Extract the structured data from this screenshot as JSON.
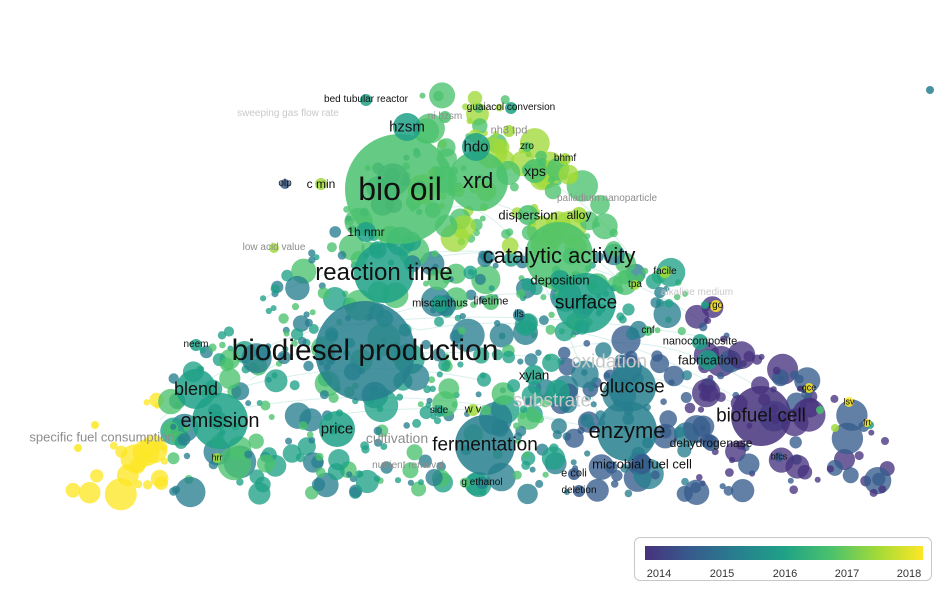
{
  "colormap": [
    "#46327e",
    "#365c8d",
    "#277f8e",
    "#1fa187",
    "#4ac16d",
    "#a0da39",
    "#fde725"
  ],
  "legend": {
    "ticks": [
      "2014",
      "2015",
      "2016",
      "2017",
      "2018"
    ]
  },
  "terms": [
    {
      "id": "biodiesel_production",
      "label": "biodiesel production"
    },
    {
      "id": "bio_oil",
      "label": "bio oil"
    },
    {
      "id": "reaction_time",
      "label": "reaction time"
    },
    {
      "id": "catalytic_activity",
      "label": "catalytic activity"
    },
    {
      "id": "xrd",
      "label": "xrd"
    },
    {
      "id": "enzyme",
      "label": "enzyme"
    },
    {
      "id": "biofuel_cell",
      "label": "biofuel cell"
    },
    {
      "id": "emission",
      "label": "emission"
    },
    {
      "id": "fermentation",
      "label": "fermentation"
    },
    {
      "id": "glucose",
      "label": "glucose"
    },
    {
      "id": "surface",
      "label": "surface"
    },
    {
      "id": "blend",
      "label": "blend"
    },
    {
      "id": "hzsm",
      "label": "hzsm"
    },
    {
      "id": "hdo",
      "label": "hdo"
    },
    {
      "id": "price",
      "label": "price"
    },
    {
      "id": "specific_fuel_consumption",
      "label": "specific fuel consumption"
    },
    {
      "id": "xps",
      "label": "xps"
    },
    {
      "id": "dispersion",
      "label": "dispersion"
    },
    {
      "id": "alloy",
      "label": "alloy"
    },
    {
      "id": "1h_nmr",
      "label": "1h nmr"
    },
    {
      "id": "deposition",
      "label": "deposition"
    },
    {
      "id": "microbial_fuel_cell",
      "label": "microbial fuel cell"
    },
    {
      "id": "dehydrogenase",
      "label": "dehydrogenase"
    },
    {
      "id": "fabrication",
      "label": "fabrication"
    },
    {
      "id": "nanocomposite",
      "label": "nanocomposite"
    },
    {
      "id": "xylan",
      "label": "xylan"
    },
    {
      "id": "cultivation",
      "label": "cultivation"
    },
    {
      "id": "substrate",
      "label": "substrate"
    },
    {
      "id": "oxidation",
      "label": "oxidation"
    },
    {
      "id": "bed_tubular_reactor",
      "label": "bed tubular reactor"
    },
    {
      "id": "guaiacol_conversion",
      "label": "guaiacol conversion"
    },
    {
      "id": "sweeping_gas_flow_rate",
      "label": "sweeping gas flow rate"
    },
    {
      "id": "ni_hzsm",
      "label": "ni hzsm"
    },
    {
      "id": "nh3_tpd",
      "label": "nh3 tpd"
    },
    {
      "id": "zro",
      "label": "zro"
    },
    {
      "id": "bhmf",
      "label": "bhmf"
    },
    {
      "id": "olp",
      "label": "olp"
    },
    {
      "id": "c_min",
      "label": "c min"
    },
    {
      "id": "palladium_nanoparticle",
      "label": "palladium nanoparticle"
    },
    {
      "id": "low_acid_value",
      "label": "low acid value"
    },
    {
      "id": "facile",
      "label": "facile"
    },
    {
      "id": "tpa",
      "label": "tpa"
    },
    {
      "id": "alkaline_medium",
      "label": "alkaline medium"
    },
    {
      "id": "rgo",
      "label": "rgo"
    },
    {
      "id": "miscanthus",
      "label": "miscanthus"
    },
    {
      "id": "lifetime",
      "label": "lifetime"
    },
    {
      "id": "ils",
      "label": "ils"
    },
    {
      "id": "cnf",
      "label": "cnf"
    },
    {
      "id": "neem",
      "label": "neem"
    },
    {
      "id": "side",
      "label": "side"
    },
    {
      "id": "w_v",
      "label": "w v"
    },
    {
      "id": "gce",
      "label": "gce"
    },
    {
      "id": "lsv",
      "label": "lsv"
    },
    {
      "id": "frt",
      "label": "frt"
    },
    {
      "id": "bfcs",
      "label": "bfcs"
    },
    {
      "id": "hrr",
      "label": "hrr"
    },
    {
      "id": "nutrient_removal",
      "label": "nutrient removal"
    },
    {
      "id": "e_coli",
      "label": "e coli"
    },
    {
      "id": "g_ethanol",
      "label": "g ethanol"
    },
    {
      "id": "deletion",
      "label": "deletion"
    }
  ]
}
